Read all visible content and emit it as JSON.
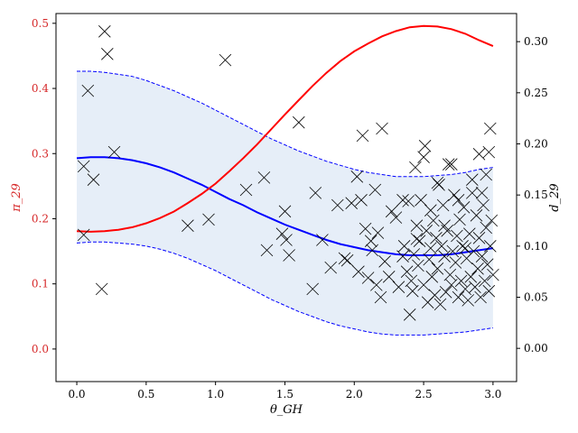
{
  "chart_data": {
    "type": "scatter",
    "title": "",
    "xlabel": "θ_GH",
    "ylabel_left": "π_29",
    "ylabel_right": "d_29",
    "xlim": [
      -0.15,
      3.17
    ],
    "ylim_left": [
      -0.05,
      0.515
    ],
    "ylim_right": [
      -0.0325,
      0.3275
    ],
    "x_ticks": [
      0.0,
      0.5,
      1.0,
      1.5,
      2.0,
      2.5,
      3.0
    ],
    "x_tick_labels": [
      "0.0",
      "0.5",
      "1.0",
      "1.5",
      "2.0",
      "2.5",
      "3.0"
    ],
    "y_left_ticks": [
      0.0,
      0.1,
      0.2,
      0.3,
      0.4,
      0.5
    ],
    "y_left_tick_labels": [
      "0.0",
      "0.1",
      "0.2",
      "0.3",
      "0.4",
      "0.5"
    ],
    "y_right_ticks": [
      0.0,
      0.05,
      0.1,
      0.15,
      0.2,
      0.25,
      0.3
    ],
    "y_right_tick_labels": [
      "0.00",
      "0.05",
      "0.10",
      "0.15",
      "0.20",
      "0.25",
      "0.30"
    ],
    "colors": {
      "left_axis": "#d62728",
      "pi_curve": "#ff0000",
      "mean_curve": "#0000ff",
      "band_fill": "#e6eef8",
      "band_edge": "#0000ff",
      "markers": "#000000"
    },
    "series": [
      {
        "axis": "left",
        "style": "red-line",
        "x": [
          0.0,
          0.1,
          0.2,
          0.3,
          0.4,
          0.5,
          0.6,
          0.7,
          0.8,
          0.9,
          1.0,
          1.1,
          1.2,
          1.3,
          1.4,
          1.5,
          1.6,
          1.7,
          1.8,
          1.9,
          2.0,
          2.1,
          2.2,
          2.3,
          2.4,
          2.5,
          2.6,
          2.7,
          2.8,
          2.9,
          3.0
        ],
        "y": [
          0.181,
          0.18,
          0.181,
          0.183,
          0.187,
          0.193,
          0.201,
          0.211,
          0.224,
          0.238,
          0.254,
          0.273,
          0.293,
          0.314,
          0.337,
          0.36,
          0.382,
          0.404,
          0.424,
          0.442,
          0.457,
          0.469,
          0.48,
          0.488,
          0.494,
          0.496,
          0.495,
          0.491,
          0.484,
          0.474,
          0.465
        ]
      },
      {
        "axis": "right",
        "style": "blue-mean-line",
        "x": [
          0.0,
          0.1,
          0.2,
          0.3,
          0.4,
          0.5,
          0.6,
          0.7,
          0.8,
          0.9,
          1.0,
          1.1,
          1.2,
          1.3,
          1.4,
          1.5,
          1.6,
          1.7,
          1.8,
          1.9,
          2.0,
          2.1,
          2.2,
          2.3,
          2.4,
          2.5,
          2.6,
          2.7,
          2.8,
          2.9,
          3.0
        ],
        "y": [
          0.186,
          0.187,
          0.187,
          0.186,
          0.184,
          0.181,
          0.177,
          0.172,
          0.166,
          0.16,
          0.153,
          0.146,
          0.14,
          0.133,
          0.127,
          0.121,
          0.116,
          0.111,
          0.106,
          0.102,
          0.099,
          0.096,
          0.094,
          0.092,
          0.091,
          0.091,
          0.091,
          0.092,
          0.094,
          0.096,
          0.098
        ]
      },
      {
        "axis": "right",
        "style": "band-upper",
        "x": [
          0.0,
          0.1,
          0.2,
          0.3,
          0.4,
          0.5,
          0.6,
          0.7,
          0.8,
          0.9,
          1.0,
          1.1,
          1.2,
          1.3,
          1.4,
          1.5,
          1.6,
          1.7,
          1.8,
          1.9,
          2.0,
          2.1,
          2.2,
          2.3,
          2.4,
          2.5,
          2.6,
          2.7,
          2.8,
          2.9,
          3.0
        ],
        "y": [
          0.271,
          0.271,
          0.27,
          0.268,
          0.266,
          0.262,
          0.257,
          0.252,
          0.246,
          0.24,
          0.233,
          0.226,
          0.219,
          0.212,
          0.205,
          0.199,
          0.193,
          0.188,
          0.183,
          0.179,
          0.175,
          0.172,
          0.17,
          0.168,
          0.168,
          0.168,
          0.169,
          0.17,
          0.172,
          0.175,
          0.177
        ]
      },
      {
        "axis": "right",
        "style": "band-lower",
        "x": [
          0.0,
          0.1,
          0.2,
          0.3,
          0.4,
          0.5,
          0.6,
          0.7,
          0.8,
          0.9,
          1.0,
          1.1,
          1.2,
          1.3,
          1.4,
          1.5,
          1.6,
          1.7,
          1.8,
          1.9,
          2.0,
          2.1,
          2.2,
          2.3,
          2.4,
          2.5,
          2.6,
          2.7,
          2.8,
          2.9,
          3.0
        ],
        "y": [
          0.103,
          0.104,
          0.104,
          0.103,
          0.102,
          0.1,
          0.097,
          0.093,
          0.088,
          0.082,
          0.076,
          0.069,
          0.062,
          0.055,
          0.048,
          0.042,
          0.036,
          0.031,
          0.026,
          0.022,
          0.019,
          0.016,
          0.014,
          0.013,
          0.013,
          0.013,
          0.014,
          0.015,
          0.016,
          0.018,
          0.02
        ]
      },
      {
        "axis": "right",
        "style": "x-markers",
        "points": [
          [
            0.05,
            0.178
          ],
          [
            0.08,
            0.252
          ],
          [
            0.12,
            0.165
          ],
          [
            0.18,
            0.058
          ],
          [
            0.2,
            0.31
          ],
          [
            0.22,
            0.288
          ],
          [
            0.27,
            0.192
          ],
          [
            0.05,
            0.111
          ],
          [
            0.8,
            0.12
          ],
          [
            0.95,
            0.126
          ],
          [
            1.07,
            0.282
          ],
          [
            1.22,
            0.155
          ],
          [
            1.35,
            0.167
          ],
          [
            1.37,
            0.096
          ],
          [
            1.48,
            0.112
          ],
          [
            1.5,
            0.134
          ],
          [
            1.51,
            0.106
          ],
          [
            1.53,
            0.091
          ],
          [
            1.6,
            0.221
          ],
          [
            1.7,
            0.058
          ],
          [
            1.72,
            0.152
          ],
          [
            1.77,
            0.106
          ],
          [
            1.83,
            0.079
          ],
          [
            1.88,
            0.14
          ],
          [
            1.93,
            0.088
          ],
          [
            1.95,
            0.086
          ],
          [
            1.98,
            0.142
          ],
          [
            2.02,
            0.168
          ],
          [
            2.03,
            0.075
          ],
          [
            2.05,
            0.145
          ],
          [
            2.06,
            0.208
          ],
          [
            2.08,
            0.117
          ],
          [
            2.1,
            0.069
          ],
          [
            2.12,
            0.105
          ],
          [
            2.13,
            0.096
          ],
          [
            2.15,
            0.155
          ],
          [
            2.16,
            0.062
          ],
          [
            2.17,
            0.113
          ],
          [
            2.19,
            0.05
          ],
          [
            2.2,
            0.215
          ],
          [
            2.22,
            0.085
          ],
          [
            2.25,
            0.07
          ],
          [
            2.27,
            0.134
          ],
          [
            2.3,
            0.128
          ],
          [
            2.32,
            0.06
          ],
          [
            2.35,
            0.09
          ],
          [
            2.36,
            0.1
          ],
          [
            2.38,
            0.075
          ],
          [
            2.39,
            0.144
          ],
          [
            2.4,
            0.033
          ],
          [
            2.41,
            0.066
          ],
          [
            2.42,
            0.056
          ],
          [
            2.43,
            0.092
          ],
          [
            2.44,
            0.177
          ],
          [
            2.45,
            0.12
          ],
          [
            2.46,
            0.081
          ],
          [
            2.47,
            0.105
          ],
          [
            2.48,
            0.145
          ],
          [
            2.5,
            0.062
          ],
          [
            2.51,
            0.198
          ],
          [
            2.52,
            0.115
          ],
          [
            2.53,
            0.045
          ],
          [
            2.54,
            0.087
          ],
          [
            2.55,
            0.098
          ],
          [
            2.56,
            0.07
          ],
          [
            2.57,
            0.125
          ],
          [
            2.58,
            0.052
          ],
          [
            2.59,
            0.108
          ],
          [
            2.6,
            0.078
          ],
          [
            2.61,
            0.16
          ],
          [
            2.62,
            0.043
          ],
          [
            2.63,
            0.1
          ],
          [
            2.64,
            0.14
          ],
          [
            2.65,
            0.09
          ],
          [
            2.66,
            0.055
          ],
          [
            2.67,
            0.115
          ],
          [
            2.68,
            0.18
          ],
          [
            2.69,
            0.072
          ],
          [
            2.7,
            0.062
          ],
          [
            2.71,
            0.095
          ],
          [
            2.72,
            0.15
          ],
          [
            2.73,
            0.084
          ],
          [
            2.74,
            0.11
          ],
          [
            2.75,
            0.05
          ],
          [
            2.76,
            0.126
          ],
          [
            2.77,
            0.066
          ],
          [
            2.78,
            0.1
          ],
          [
            2.79,
            0.138
          ],
          [
            2.8,
            0.058
          ],
          [
            2.81,
            0.088
          ],
          [
            2.82,
            0.047
          ],
          [
            2.83,
            0.112
          ],
          [
            2.84,
            0.07
          ],
          [
            2.85,
            0.152
          ],
          [
            2.86,
            0.095
          ],
          [
            2.87,
            0.06
          ],
          [
            2.88,
            0.13
          ],
          [
            2.89,
            0.078
          ],
          [
            2.9,
            0.108
          ],
          [
            2.91,
            0.05
          ],
          [
            2.92,
            0.09
          ],
          [
            2.93,
            0.14
          ],
          [
            2.94,
            0.066
          ],
          [
            2.95,
            0.118
          ],
          [
            2.96,
            0.082
          ],
          [
            2.97,
            0.056
          ],
          [
            2.98,
            0.1
          ],
          [
            2.99,
            0.125
          ],
          [
            3.0,
            0.072
          ],
          [
            2.97,
            0.192
          ],
          [
            2.98,
            0.215
          ],
          [
            2.9,
            0.19
          ],
          [
            2.5,
            0.187
          ],
          [
            2.6,
            0.162
          ],
          [
            2.7,
            0.18
          ],
          [
            2.85,
            0.165
          ],
          [
            2.45,
            0.107
          ],
          [
            2.55,
            0.135
          ],
          [
            2.75,
            0.145
          ],
          [
            2.95,
            0.17
          ],
          [
            2.35,
            0.145
          ],
          [
            2.65,
            0.12
          ],
          [
            2.8,
            0.098
          ],
          [
            2.92,
            0.152
          ]
        ]
      }
    ]
  }
}
